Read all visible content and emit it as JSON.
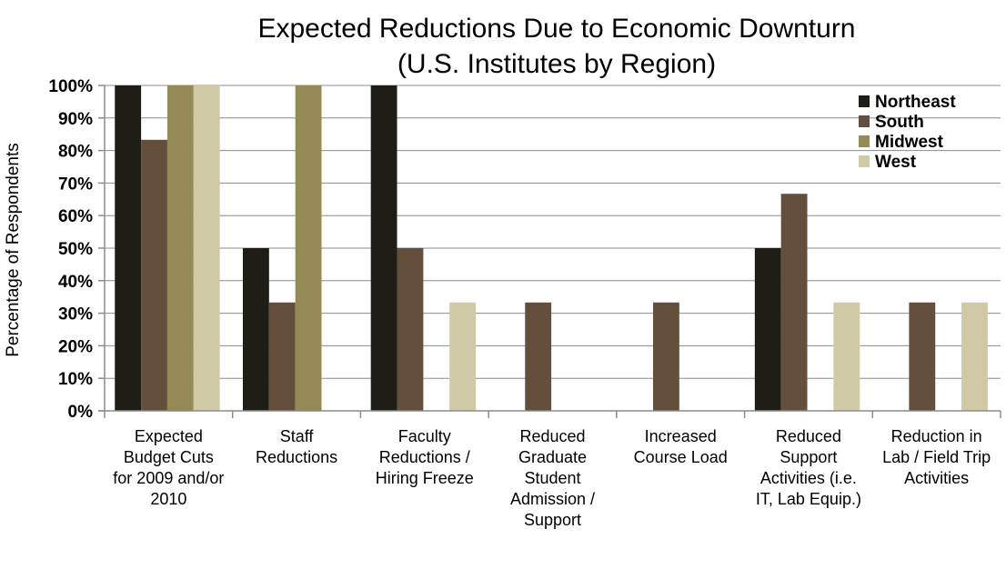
{
  "chart_data": {
    "type": "bar",
    "title": "Expected Reductions Due to Economic Downturn",
    "subtitle": "(U.S. Institutes by Region)",
    "xlabel": "",
    "ylabel": "Percentage of Respondents",
    "ylim": [
      0,
      100
    ],
    "yticks": [
      0,
      10,
      20,
      30,
      40,
      50,
      60,
      70,
      80,
      90,
      100
    ],
    "ytick_labels": [
      "0%",
      "10%",
      "20%",
      "30%",
      "40%",
      "50%",
      "60%",
      "70%",
      "80%",
      "90%",
      "100%"
    ],
    "grid": true,
    "legend_position": "top-right",
    "categories": [
      [
        "Expected",
        "Budget Cuts",
        "for 2009 and/or",
        "2010"
      ],
      [
        "Staff",
        "Reductions"
      ],
      [
        "Faculty",
        "Reductions /",
        "Hiring Freeze"
      ],
      [
        "Reduced",
        "Graduate",
        "Student",
        "Admission /",
        "Support"
      ],
      [
        "Increased",
        "Course Load"
      ],
      [
        "Reduced",
        "Support",
        "Activities  (i.e.",
        "IT, Lab Equip.)"
      ],
      [
        "Reduction in",
        "Lab / Field Trip",
        "Activities"
      ]
    ],
    "series": [
      {
        "name": "Northeast",
        "color": "#1f1e16",
        "values": [
          100,
          50,
          100,
          0,
          0,
          50,
          0
        ]
      },
      {
        "name": "South",
        "color": "#634f3b",
        "values": [
          83.3,
          33.3,
          50,
          33.3,
          33.3,
          66.7,
          33.3
        ]
      },
      {
        "name": "Midwest",
        "color": "#938a56",
        "values": [
          100,
          100,
          0,
          0,
          0,
          0,
          0
        ]
      },
      {
        "name": "West",
        "color": "#cfc9a5",
        "values": [
          100,
          0,
          33.3,
          0,
          0,
          33.3,
          33.3
        ]
      }
    ]
  }
}
